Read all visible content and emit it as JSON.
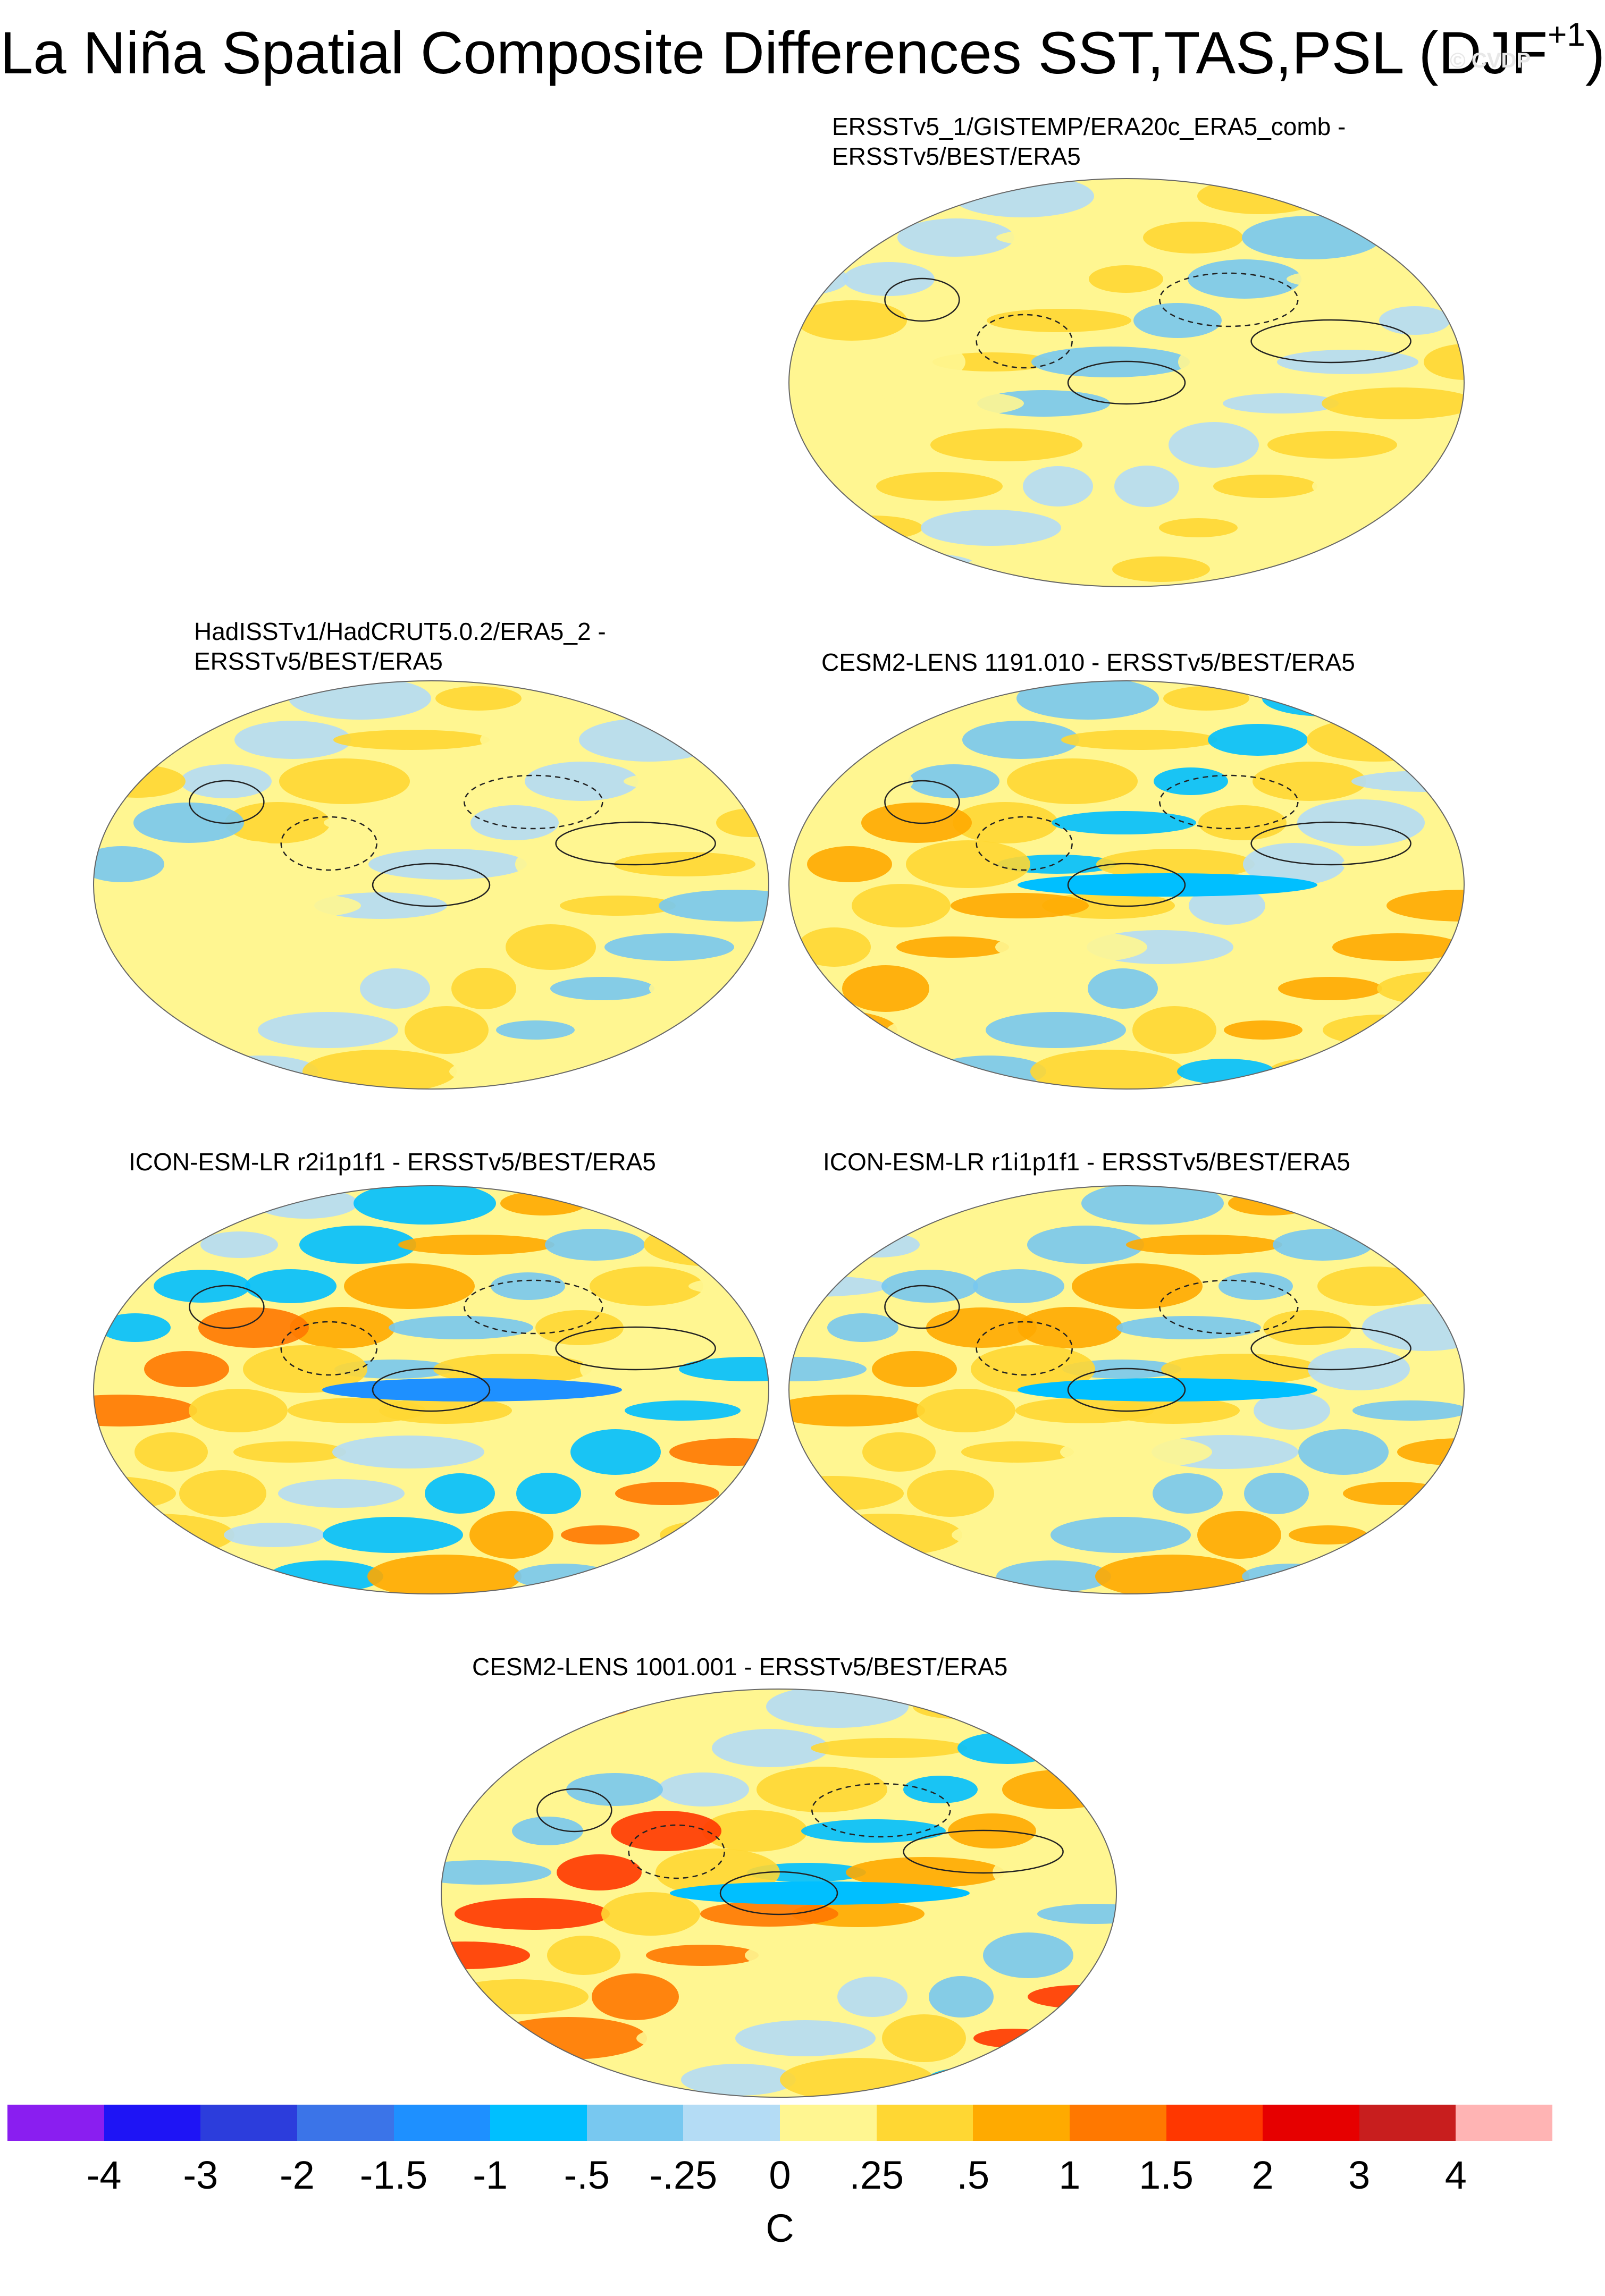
{
  "title": {
    "main": "La Niña Spatial Composite Differences SST,TAS,PSL (DJF",
    "sup": "+1",
    "close": ")"
  },
  "watermark": "© CVDP",
  "panels": [
    {
      "title_line1": "ERSSTv5_1/GISTEMP/ERA20c_ERA5_comb -",
      "title_line2": "ERSSTv5/BEST/ERA5"
    },
    {
      "title_line1": "HadISSTv1/HadCRUT5.0.2/ERA5_2 -",
      "title_line2": "ERSSTv5/BEST/ERA5"
    },
    {
      "title_line1": "CESM2-LENS 1191.010 - ERSSTv5/BEST/ERA5",
      "title_line2": ""
    },
    {
      "title_line1": "ICON-ESM-LR r2i1p1f1 - ERSSTv5/BEST/ERA5",
      "title_line2": ""
    },
    {
      "title_line1": "ICON-ESM-LR r1i1p1f1 - ERSSTv5/BEST/ERA5",
      "title_line2": ""
    },
    {
      "title_line1": "CESM2-LENS 1001.001 - ERSSTv5/BEST/ERA5",
      "title_line2": ""
    }
  ],
  "colorbar": {
    "colors": [
      "#8a1ef0",
      "#1e14f5",
      "#2c3ddc",
      "#3b74e8",
      "#1e90ff",
      "#00bfff",
      "#78c8f0",
      "#b4dcf5",
      "#fff691",
      "#ffd733",
      "#ffaa00",
      "#ff7800",
      "#ff3700",
      "#e60000",
      "#c81e1e",
      "#ffb4b4"
    ],
    "ticks": [
      "-4",
      "-3",
      "-2",
      "-1.5",
      "-1",
      "-.5",
      "-.25",
      "0",
      ".25",
      ".5",
      "1",
      "1.5",
      "2",
      "3",
      "4"
    ],
    "unit": "C"
  }
}
